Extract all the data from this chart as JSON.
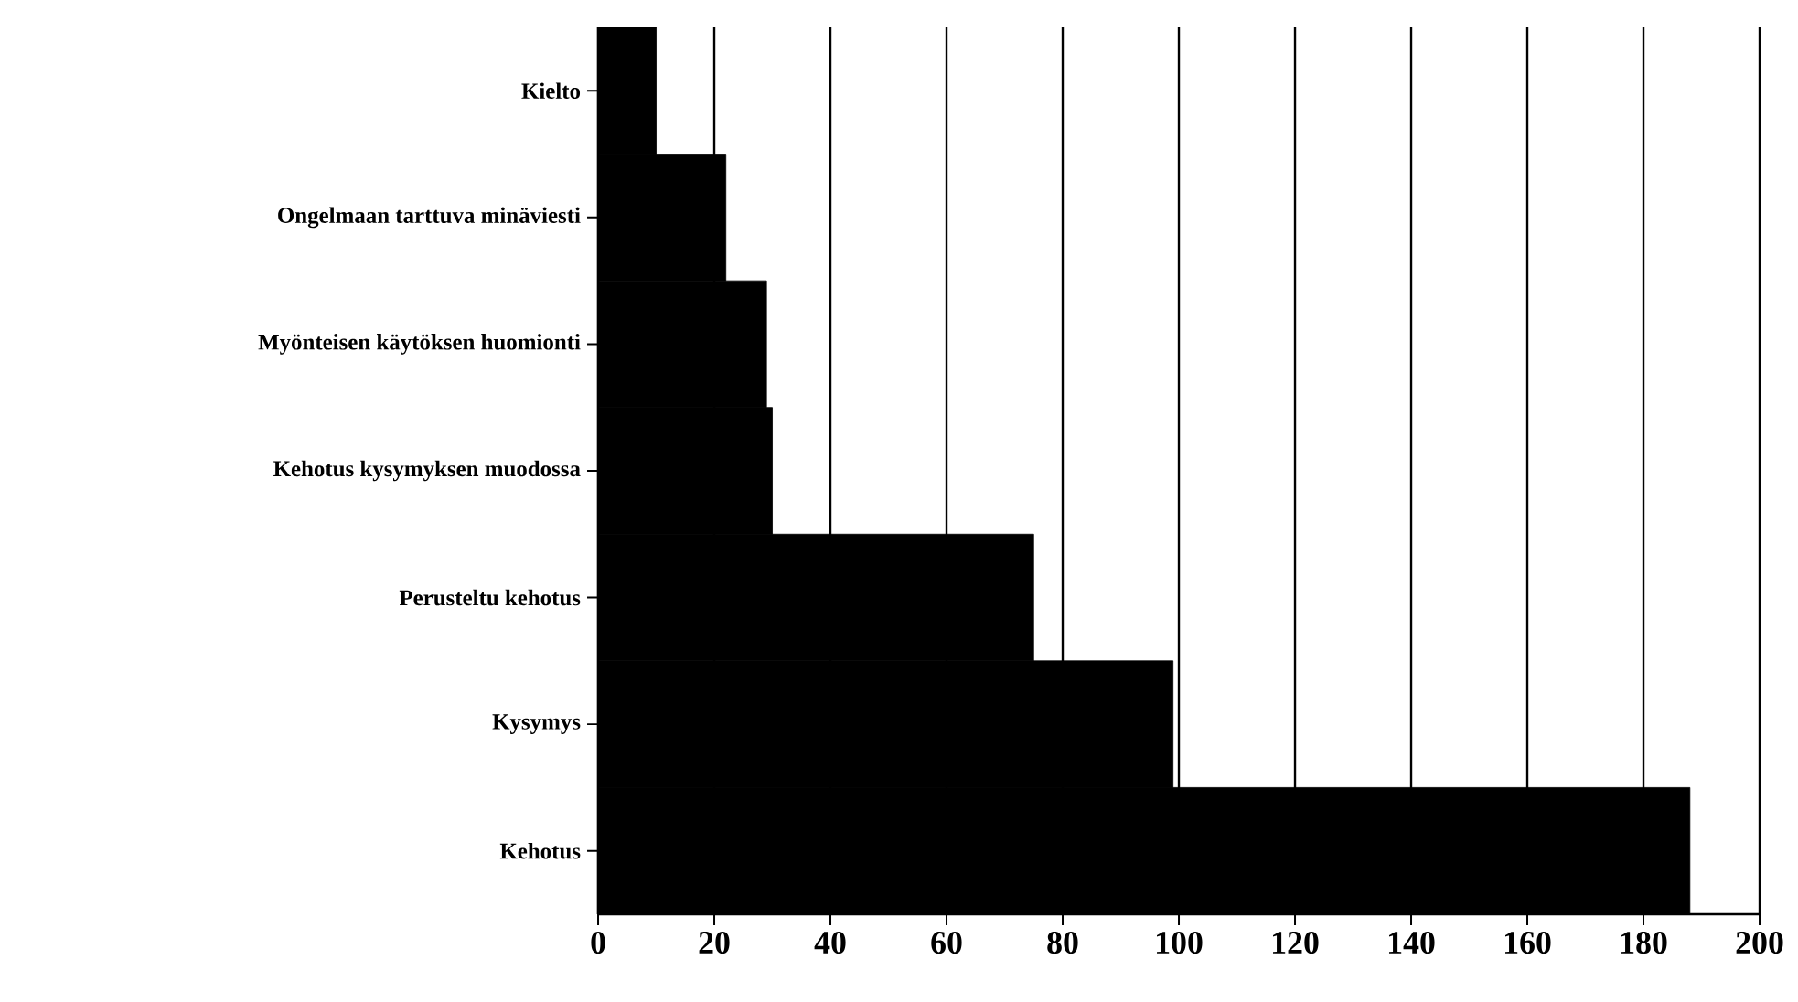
{
  "chart_data": {
    "type": "bar",
    "orientation": "horizontal",
    "categories": [
      "Kielto",
      "Ongelmaan tarttuva minäviesti",
      "Myönteisen käytöksen huomionti",
      "Kehotus kysymyksen muodossa",
      "Perusteltu kehotus",
      "Kysymys",
      "Kehotus"
    ],
    "values": [
      10,
      22,
      29,
      30,
      75,
      99,
      188
    ],
    "color": "#000000",
    "xlim": [
      0,
      200
    ],
    "xticks": [
      0,
      20,
      40,
      60,
      80,
      100,
      120,
      140,
      160,
      180,
      200
    ],
    "grid": "x"
  }
}
